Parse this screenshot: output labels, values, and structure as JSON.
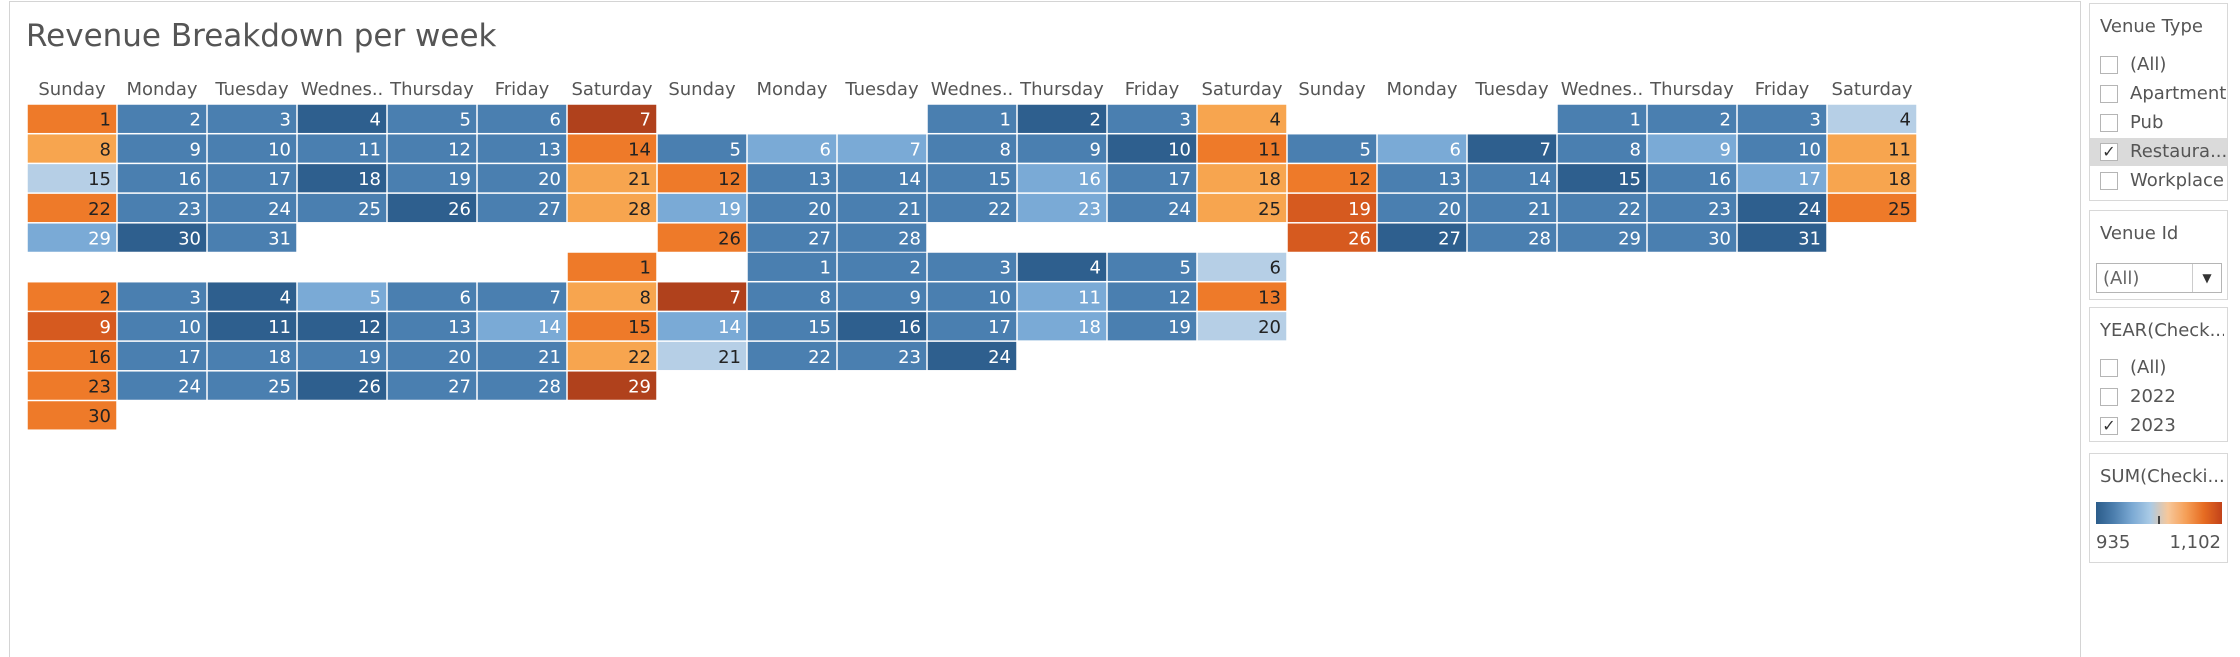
{
  "title": "Revenue Breakdown per week",
  "chart_data": {
    "type": "heatmap",
    "title": "Revenue Breakdown per week",
    "weekday_labels": [
      "Sunday",
      "Monday",
      "Tuesday",
      "Wednes..",
      "Thursday",
      "Friday",
      "Saturday"
    ],
    "color_legend": {
      "title": "SUM(Checki...",
      "min_label": "935",
      "max_label": "1,102"
    },
    "months": [
      {
        "start_weekday": 0,
        "values": [
          6,
          2,
          2,
          1,
          2,
          2,
          8,
          5,
          2,
          2,
          2,
          2,
          2,
          6,
          4,
          2,
          2,
          1,
          2,
          2,
          5,
          6,
          2,
          2,
          2,
          1,
          2,
          5,
          3,
          1,
          2
        ]
      },
      {
        "start_weekday": 3,
        "values": [
          2,
          1,
          2,
          5,
          2,
          3,
          3,
          2,
          2,
          1,
          6,
          6,
          2,
          2,
          2,
          3,
          2,
          5,
          3,
          2,
          2,
          2,
          3,
          2,
          5,
          6,
          2,
          2
        ]
      },
      {
        "start_weekday": 3,
        "values": [
          2,
          2,
          2,
          4,
          2,
          3,
          1,
          2,
          3,
          2,
          5,
          6,
          2,
          2,
          1,
          2,
          3,
          5,
          7,
          2,
          2,
          2,
          2,
          1,
          6,
          7,
          1,
          2,
          2,
          2,
          1
        ]
      },
      {
        "start_weekday": 6,
        "values": [
          6,
          6,
          2,
          1,
          3,
          2,
          2,
          5,
          7,
          2,
          1,
          1,
          2,
          3,
          6,
          6,
          2,
          2,
          2,
          2,
          2,
          5,
          6,
          2,
          2,
          1,
          2,
          2,
          8,
          6
        ]
      },
      {
        "start_weekday": 1,
        "values": [
          2,
          2,
          2,
          1,
          2,
          4,
          8,
          2,
          2,
          2,
          3,
          2,
          6,
          3,
          2,
          1,
          2,
          3,
          2,
          4,
          4,
          2,
          2,
          1
        ]
      }
    ]
  },
  "sidebar": {
    "venue_type": {
      "title": "Venue Type",
      "options": [
        {
          "label": "(All)",
          "checked": false
        },
        {
          "label": "Apartment",
          "checked": false
        },
        {
          "label": "Pub",
          "checked": false
        },
        {
          "label": "Restaura...",
          "checked": true
        },
        {
          "label": "Workplace",
          "checked": false
        }
      ]
    },
    "venue_id": {
      "title": "Venue Id",
      "value": "(All)"
    },
    "year": {
      "title": "YEAR(Check...",
      "options": [
        {
          "label": "(All)",
          "checked": false
        },
        {
          "label": "2022",
          "checked": false
        },
        {
          "label": "2023",
          "checked": true
        }
      ]
    },
    "legend": {
      "title": "SUM(Checki...",
      "min": "935",
      "max": "1,102"
    }
  },
  "colors": {
    "level_1": "#2e5f8e",
    "level_2": "#4a7fb0",
    "level_3": "#7aaad6",
    "level_4": "#b6cfe6",
    "level_5": "#f7a54f",
    "level_6": "#ee7a29",
    "level_7": "#d65a1f",
    "level_8": "#b0411c"
  }
}
